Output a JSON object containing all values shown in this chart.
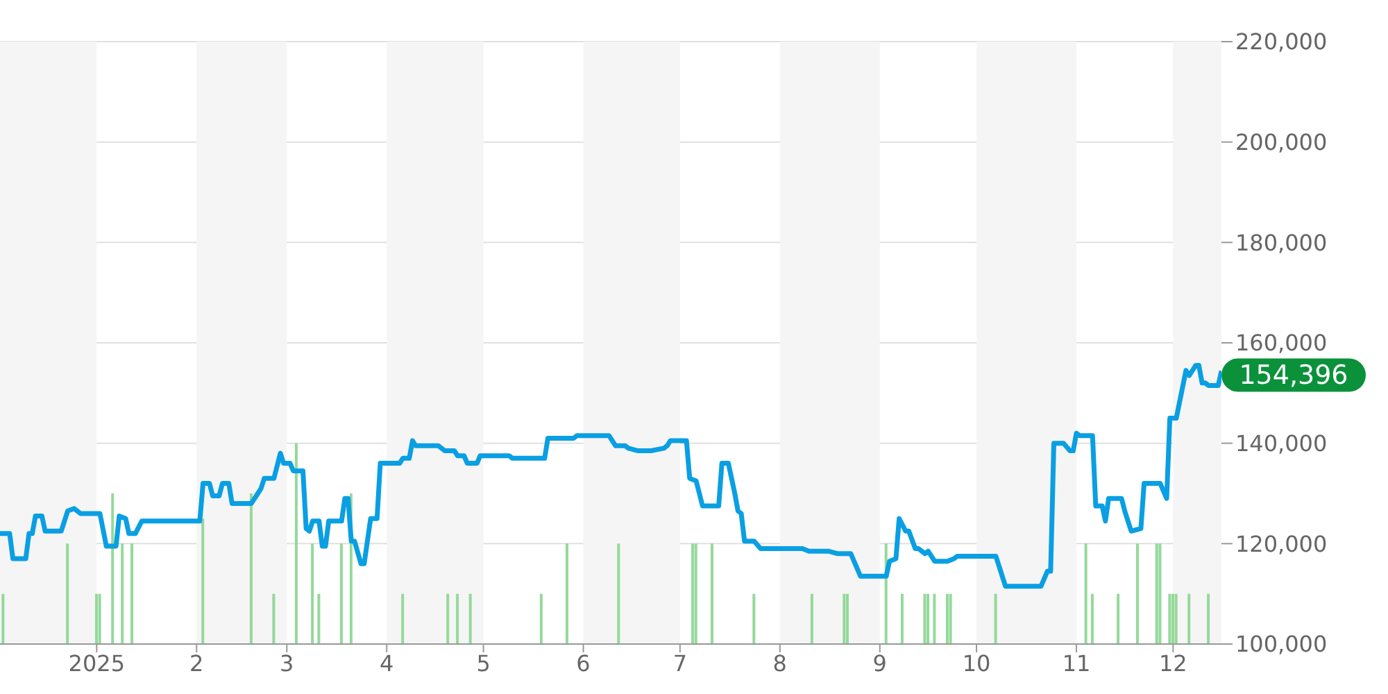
{
  "chart_data": {
    "type": "line",
    "xlim": [
      "2024-12-02",
      "2025-12-16"
    ],
    "xticks": [
      {
        "value": "2025-01-01",
        "label": "2025"
      },
      {
        "value": "2025-02-01",
        "label": "2"
      },
      {
        "value": "2025-03-01",
        "label": "3"
      },
      {
        "value": "2025-04-01",
        "label": "4"
      },
      {
        "value": "2025-05-01",
        "label": "5"
      },
      {
        "value": "2025-06-01",
        "label": "6"
      },
      {
        "value": "2025-07-01",
        "label": "7"
      },
      {
        "value": "2025-08-01",
        "label": "8"
      },
      {
        "value": "2025-09-01",
        "label": "9"
      },
      {
        "value": "2025-10-01",
        "label": "10"
      },
      {
        "value": "2025-11-01",
        "label": "11"
      },
      {
        "value": "2025-12-01",
        "label": "12"
      }
    ],
    "ylim": [
      100000,
      220000
    ],
    "yticks": [
      {
        "value": 100000,
        "label": "100,000"
      },
      {
        "value": 120000,
        "label": "120,000"
      },
      {
        "value": 140000,
        "label": "140,000"
      },
      {
        "value": 160000,
        "label": "160,000"
      },
      {
        "value": 180000,
        "label": "180,000"
      },
      {
        "value": 200000,
        "label": "200,000"
      },
      {
        "value": 220000,
        "label": "220,000"
      }
    ],
    "grid": "y",
    "legend": false,
    "marker": "none",
    "bands": [
      {
        "axis": "x",
        "from": "2024-12-02",
        "to": "2025-01-01",
        "color": "#f5f5f5"
      },
      {
        "axis": "x",
        "from": "2025-02-01",
        "to": "2025-03-01",
        "color": "#f5f5f5"
      },
      {
        "axis": "x",
        "from": "2025-04-01",
        "to": "2025-05-01",
        "color": "#f5f5f5"
      },
      {
        "axis": "x",
        "from": "2025-06-01",
        "to": "2025-07-01",
        "color": "#f5f5f5"
      },
      {
        "axis": "x",
        "from": "2025-08-01",
        "to": "2025-09-01",
        "color": "#f5f5f5"
      },
      {
        "axis": "x",
        "from": "2025-10-01",
        "to": "2025-11-01",
        "color": "#f5f5f5"
      },
      {
        "axis": "x",
        "from": "2025-12-01",
        "to": "2025-12-16",
        "color": "#f5f5f5"
      }
    ],
    "annotations": [
      {
        "text": "154,396",
        "x": "2025-12-16",
        "y": 154396
      }
    ],
    "series": [
      {
        "type": "bar",
        "color": "#94d99a",
        "x": [
          "2024-12-03",
          "2024-12-23",
          "2025-01-01",
          "2025-01-02",
          "2025-01-06",
          "2025-01-09",
          "2025-01-12",
          "2025-02-03",
          "2025-02-18",
          "2025-02-25",
          "2025-03-04",
          "2025-03-09",
          "2025-03-11",
          "2025-03-18",
          "2025-03-21",
          "2025-04-06",
          "2025-04-20",
          "2025-04-23",
          "2025-04-27",
          "2025-05-19",
          "2025-05-27",
          "2025-06-12",
          "2025-07-05",
          "2025-07-06",
          "2025-07-11",
          "2025-07-24",
          "2025-08-11",
          "2025-08-21",
          "2025-08-22",
          "2025-09-03",
          "2025-09-08",
          "2025-09-15",
          "2025-09-16",
          "2025-09-18",
          "2025-09-22",
          "2025-09-23",
          "2025-10-07",
          "2025-11-04",
          "2025-11-06",
          "2025-11-14",
          "2025-11-20",
          "2025-11-26",
          "2025-11-27",
          "2025-11-30",
          "2025-12-01",
          "2025-12-02",
          "2025-12-06",
          "2025-12-12"
        ],
        "values": [
          110000,
          120000,
          110000,
          110000,
          130000,
          120000,
          120000,
          125000,
          130000,
          110000,
          140000,
          120000,
          110000,
          120000,
          130000,
          110000,
          110000,
          110000,
          110000,
          110000,
          120000,
          120000,
          120000,
          120000,
          120000,
          110000,
          110000,
          110000,
          110000,
          120000,
          110000,
          110000,
          110000,
          110000,
          110000,
          110000,
          110000,
          120000,
          110000,
          110000,
          120000,
          120000,
          120000,
          110000,
          110000,
          110000,
          110000,
          110000
        ]
      },
      {
        "color": "#0a9fe3",
        "x": [
          "2024-12-02",
          "2024-12-05",
          "2024-12-06",
          "2024-12-10",
          "2024-12-11",
          "2024-12-12",
          "2024-12-13",
          "2024-12-15",
          "2024-12-16",
          "2024-12-21",
          "2024-12-23",
          "2024-12-25",
          "2024-12-27",
          "2025-01-02",
          "2025-01-04",
          "2025-01-07",
          "2025-01-08",
          "2025-01-10",
          "2025-01-11",
          "2025-01-13",
          "2025-01-15",
          "2025-02-02",
          "2025-02-03",
          "2025-02-05",
          "2025-02-06",
          "2025-02-08",
          "2025-02-09",
          "2025-02-11",
          "2025-02-12",
          "2025-02-18",
          "2025-02-20",
          "2025-02-21",
          "2025-02-22",
          "2025-02-25",
          "2025-02-27",
          "2025-02-28",
          "2025-03-02",
          "2025-03-03",
          "2025-03-06",
          "2025-03-07",
          "2025-03-08",
          "2025-03-09",
          "2025-03-11",
          "2025-03-12",
          "2025-03-13",
          "2025-03-14",
          "2025-03-18",
          "2025-03-19",
          "2025-03-20",
          "2025-03-21",
          "2025-03-22",
          "2025-03-24",
          "2025-03-25",
          "2025-03-27",
          "2025-03-29",
          "2025-03-30",
          "2025-04-05",
          "2025-04-06",
          "2025-04-08",
          "2025-04-09",
          "2025-04-10",
          "2025-04-17",
          "2025-04-19",
          "2025-04-22",
          "2025-04-23",
          "2025-04-25",
          "2025-04-26",
          "2025-04-29",
          "2025-04-30",
          "2025-05-09",
          "2025-05-10",
          "2025-05-20",
          "2025-05-21",
          "2025-05-29",
          "2025-05-30",
          "2025-06-09",
          "2025-06-11",
          "2025-06-14",
          "2025-06-15",
          "2025-06-18",
          "2025-06-22",
          "2025-06-26",
          "2025-06-27",
          "2025-06-28",
          "2025-07-03",
          "2025-07-04",
          "2025-07-06",
          "2025-07-07",
          "2025-07-08",
          "2025-07-13",
          "2025-07-14",
          "2025-07-16",
          "2025-07-18",
          "2025-07-19",
          "2025-07-20",
          "2025-07-21",
          "2025-07-24",
          "2025-07-26",
          "2025-08-08",
          "2025-08-10",
          "2025-08-16",
          "2025-08-19",
          "2025-08-23",
          "2025-08-24",
          "2025-08-26",
          "2025-09-03",
          "2025-09-04",
          "2025-09-06",
          "2025-09-07",
          "2025-09-09",
          "2025-09-10",
          "2025-09-12",
          "2025-09-13",
          "2025-09-15",
          "2025-09-16",
          "2025-09-18",
          "2025-09-19",
          "2025-09-22",
          "2025-09-24",
          "2025-09-25",
          "2025-10-07",
          "2025-10-10",
          "2025-10-21",
          "2025-10-23",
          "2025-10-24",
          "2025-10-25",
          "2025-10-28",
          "2025-10-30",
          "2025-10-31",
          "2025-11-01",
          "2025-11-02",
          "2025-11-06",
          "2025-11-07",
          "2025-11-09",
          "2025-11-10",
          "2025-11-11",
          "2025-11-15",
          "2025-11-16",
          "2025-11-18",
          "2025-11-21",
          "2025-11-22",
          "2025-11-27",
          "2025-11-29",
          "2025-11-30",
          "2025-12-02",
          "2025-12-05",
          "2025-12-06",
          "2025-12-08",
          "2025-12-09",
          "2025-12-10",
          "2025-12-11",
          "2025-12-12",
          "2025-12-15",
          "2025-12-16"
        ],
        "values": [
          122000,
          122000,
          117000,
          117000,
          122000,
          122000,
          125500,
          125500,
          122500,
          122500,
          126500,
          127000,
          126000,
          126000,
          119500,
          119500,
          125500,
          125000,
          122000,
          122000,
          124500,
          124500,
          132000,
          132000,
          129500,
          129500,
          132000,
          132000,
          128000,
          128000,
          130000,
          131000,
          133000,
          133000,
          138000,
          136000,
          136000,
          134500,
          134500,
          123000,
          122500,
          124500,
          124500,
          119500,
          119500,
          124500,
          124500,
          129000,
          129000,
          120500,
          120500,
          116000,
          116000,
          125000,
          125000,
          136000,
          136000,
          137000,
          137000,
          140500,
          139500,
          139500,
          138500,
          138500,
          137500,
          137500,
          136000,
          136000,
          137500,
          137500,
          137000,
          137000,
          141000,
          141000,
          141500,
          141500,
          139500,
          139500,
          139000,
          138500,
          138500,
          139000,
          139500,
          140500,
          140500,
          133000,
          132500,
          130000,
          127500,
          127500,
          136000,
          136000,
          130000,
          126500,
          126000,
          120500,
          120500,
          119000,
          119000,
          118500,
          118500,
          118000,
          118000,
          116500,
          113500,
          113500,
          116500,
          117000,
          125000,
          122500,
          122500,
          119000,
          119000,
          118000,
          118500,
          116500,
          116500,
          116500,
          117000,
          117500,
          117500,
          111500,
          111500,
          114500,
          114500,
          140000,
          140000,
          138500,
          138500,
          142000,
          141500,
          141500,
          127500,
          127500,
          124500,
          129000,
          129000,
          126500,
          122500,
          123000,
          132000,
          132000,
          129000,
          145000,
          145000,
          154500,
          153500,
          155500,
          155500,
          152000,
          152000,
          151500,
          151500,
          154396
        ]
      }
    ]
  }
}
